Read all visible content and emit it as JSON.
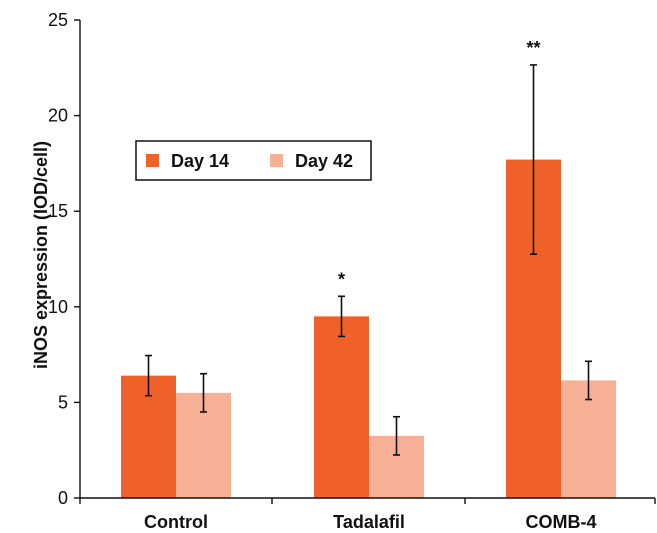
{
  "chart_data": {
    "type": "bar",
    "title": "",
    "xlabel": "",
    "ylabel": "iNOS expression (IOD/cell)",
    "ylim": [
      0,
      25
    ],
    "yticks": [
      0,
      5,
      10,
      15,
      20,
      25
    ],
    "grid": false,
    "legend_position": "upper-left",
    "categories": [
      "Control",
      "Tadalafil",
      "COMB-4"
    ],
    "series": [
      {
        "name": "Day 14",
        "color": "#f0612a",
        "values": [
          6.4,
          9.5,
          17.7
        ],
        "errors": [
          1.05,
          1.05,
          4.95
        ]
      },
      {
        "name": "Day 42",
        "color": "#f5b095",
        "values": [
          5.5,
          3.25,
          6.15
        ],
        "errors": [
          1.0,
          1.0,
          1.0
        ]
      }
    ],
    "annotations": [
      {
        "category": "Tadalafil",
        "series": "Day 14",
        "text": "*"
      },
      {
        "category": "COMB-4",
        "series": "Day 14",
        "text": "**"
      }
    ]
  }
}
